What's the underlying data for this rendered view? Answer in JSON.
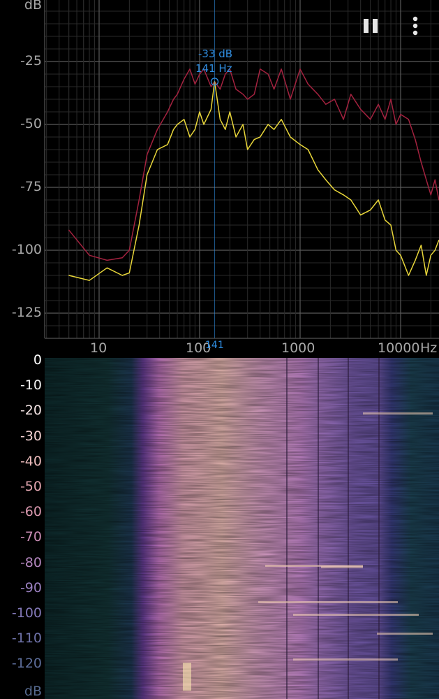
{
  "toolbar": {
    "pause_icon": "pause-icon",
    "menu_icon": "more-vert-icon"
  },
  "spectrum": {
    "y_unit": "dB",
    "x_unit": "Hz",
    "y_ticks": [
      "-25",
      "-50",
      "-75",
      "-100",
      "-125"
    ],
    "x_ticks": [
      "10",
      "100",
      "1000",
      "10000"
    ],
    "peak_db": "-33 dB",
    "peak_hz": "141 Hz",
    "cursor_hz": "141",
    "colors": {
      "max_hold": "#a3223f",
      "current": "#e8d63a",
      "cursor": "#2f8de0"
    }
  },
  "spectrogram": {
    "y_ticks": [
      "0",
      "-10",
      "-20",
      "-30",
      "-40",
      "-50",
      "-60",
      "-70",
      "-80",
      "-90",
      "-100",
      "-110",
      "-120"
    ],
    "y_unit": "dB"
  },
  "chart_data": {
    "type": "line",
    "xlabel": "Hz",
    "ylabel": "dB",
    "x_scale": "log",
    "xlim": [
      5,
      25000
    ],
    "ylim": [
      -135,
      -5
    ],
    "grid": true,
    "series": [
      {
        "color": "#a3223f",
        "x": [
          5,
          8,
          12,
          17,
          20,
          25,
          30,
          38,
          48,
          55,
          60,
          70,
          80,
          90,
          100,
          110,
          130,
          141,
          160,
          180,
          200,
          230,
          270,
          300,
          350,
          400,
          480,
          550,
          650,
          800,
          1000,
          1200,
          1500,
          1800,
          2200,
          2700,
          3200,
          4000,
          5000,
          6000,
          7000,
          8000,
          9000,
          10000,
          12000,
          14000,
          16000,
          18000,
          20000,
          22000,
          24000
        ],
        "y": [
          -92,
          -102,
          -104,
          -103,
          -100,
          -80,
          -62,
          -52,
          -45,
          -40,
          -38,
          -32,
          -28,
          -34,
          -30,
          -28,
          -35,
          -33,
          -36,
          -30,
          -28,
          -36,
          -38,
          -40,
          -38,
          -28,
          -30,
          -36,
          -28,
          -40,
          -28,
          -34,
          -38,
          -42,
          -40,
          -48,
          -38,
          -44,
          -48,
          -42,
          -48,
          -40,
          -50,
          -46,
          -48,
          -56,
          -65,
          -72,
          -78,
          -72,
          -80
        ]
      },
      {
        "color": "#e8d63a",
        "x": [
          5,
          8,
          12,
          17,
          20,
          25,
          30,
          38,
          48,
          55,
          60,
          70,
          80,
          90,
          100,
          110,
          130,
          141,
          160,
          180,
          200,
          230,
          270,
          300,
          350,
          400,
          480,
          550,
          650,
          800,
          1000,
          1200,
          1500,
          1800,
          2200,
          2700,
          3200,
          4000,
          5000,
          6000,
          7000,
          8000,
          9000,
          10000,
          12000,
          14000,
          16000,
          18000,
          20000,
          22000,
          24000
        ],
        "y": [
          -110,
          -112,
          -107,
          -110,
          -109,
          -90,
          -70,
          -60,
          -58,
          -52,
          -50,
          -48,
          -55,
          -52,
          -45,
          -50,
          -44,
          -33,
          -48,
          -52,
          -45,
          -55,
          -50,
          -60,
          -56,
          -55,
          -50,
          -52,
          -48,
          -55,
          -58,
          -60,
          -68,
          -72,
          -76,
          -78,
          -80,
          -86,
          -84,
          -80,
          -88,
          -90,
          -100,
          -102,
          -110,
          -104,
          -98,
          -110,
          -102,
          -100,
          -96
        ]
      }
    ],
    "annotations": [
      "-33 dB",
      "141 Hz"
    ]
  }
}
